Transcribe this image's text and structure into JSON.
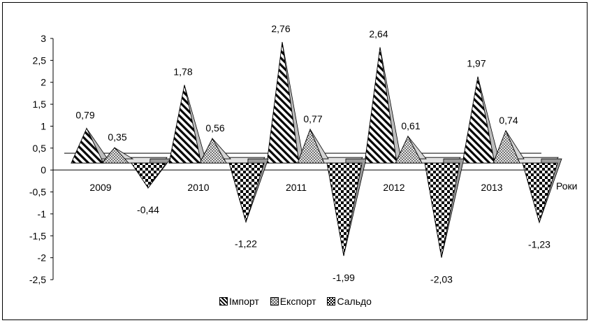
{
  "chart_data": {
    "type": "area",
    "x_unit_label": "Роки",
    "categories": [
      "2009",
      "2010",
      "2011",
      "2012",
      "2013"
    ],
    "series": [
      {
        "name": "Імпорт",
        "values": [
          0.79,
          1.78,
          2.76,
          2.64,
          1.97
        ],
        "pattern": "diagonal-hatch"
      },
      {
        "name": "Експорт",
        "values": [
          0.35,
          0.56,
          0.77,
          0.61,
          0.74
        ],
        "pattern": "crosshatch"
      },
      {
        "name": "Сальдо",
        "values": [
          -0.44,
          -1.22,
          -1.99,
          -2.03,
          -1.23
        ],
        "pattern": "checkerboard"
      }
    ],
    "data_labels": [
      [
        "0,79",
        "1,78",
        "2,76",
        "2,64",
        "1,97"
      ],
      [
        "0,35",
        "0,56",
        "0,77",
        "0,61",
        "0,74"
      ],
      [
        "-0,44",
        "-1,22",
        "-1,99",
        "-2,03",
        "-1,23"
      ]
    ],
    "y_ticks": [
      3,
      2.5,
      2,
      1.5,
      1,
      0.5,
      0,
      -0.5,
      -1,
      -1.5,
      -2,
      -2.5
    ],
    "y_tick_labels": [
      "3",
      "2,5",
      "2",
      "1,5",
      "1",
      "0,5",
      "0",
      "-0,5",
      "-1",
      "-1,5",
      "-2",
      "-2,5"
    ],
    "ylim": [
      -2.5,
      3
    ],
    "grid": false,
    "legend_position": "bottom",
    "style": "3d-cone"
  }
}
